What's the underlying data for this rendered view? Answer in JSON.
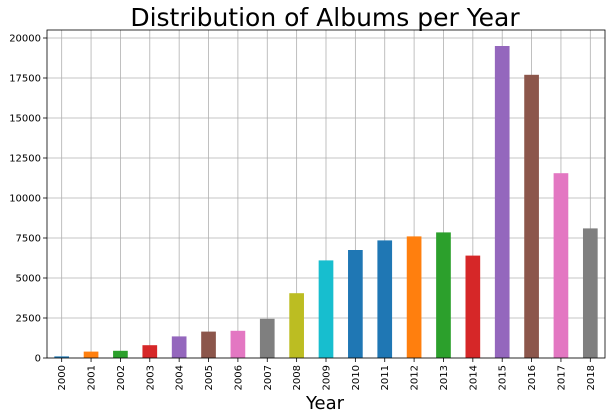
{
  "chart_data": {
    "type": "bar",
    "title": "Distribution of Albums per Year",
    "xlabel": "Year",
    "ylabel": "",
    "categories": [
      "2000",
      "2001",
      "2002",
      "2003",
      "2004",
      "2005",
      "2006",
      "2007",
      "2008",
      "2009",
      "2010",
      "2011",
      "2012",
      "2013",
      "2014",
      "2015",
      "2016",
      "2017",
      "2018"
    ],
    "values": [
      100,
      400,
      450,
      800,
      1350,
      1650,
      1700,
      2450,
      4050,
      6100,
      6750,
      7350,
      7600,
      7850,
      6400,
      19500,
      17700,
      11550,
      8100
    ],
    "colors": [
      "#1f77b4",
      "#ff7f0e",
      "#2ca02c",
      "#d62728",
      "#9467bd",
      "#8c564b",
      "#e377c2",
      "#7f7f7f",
      "#bcbd22",
      "#17becf",
      "#1f77b4",
      "#1f77b4",
      "#ff7f0e",
      "#2ca02c",
      "#d62728",
      "#9467bd",
      "#8c564b",
      "#e377c2",
      "#7f7f7f"
    ],
    "ylim": [
      0,
      20500
    ],
    "yticks": [
      0,
      2500,
      5000,
      7500,
      10000,
      12500,
      15000,
      17500,
      20000
    ],
    "grid": true,
    "legend": "none"
  }
}
